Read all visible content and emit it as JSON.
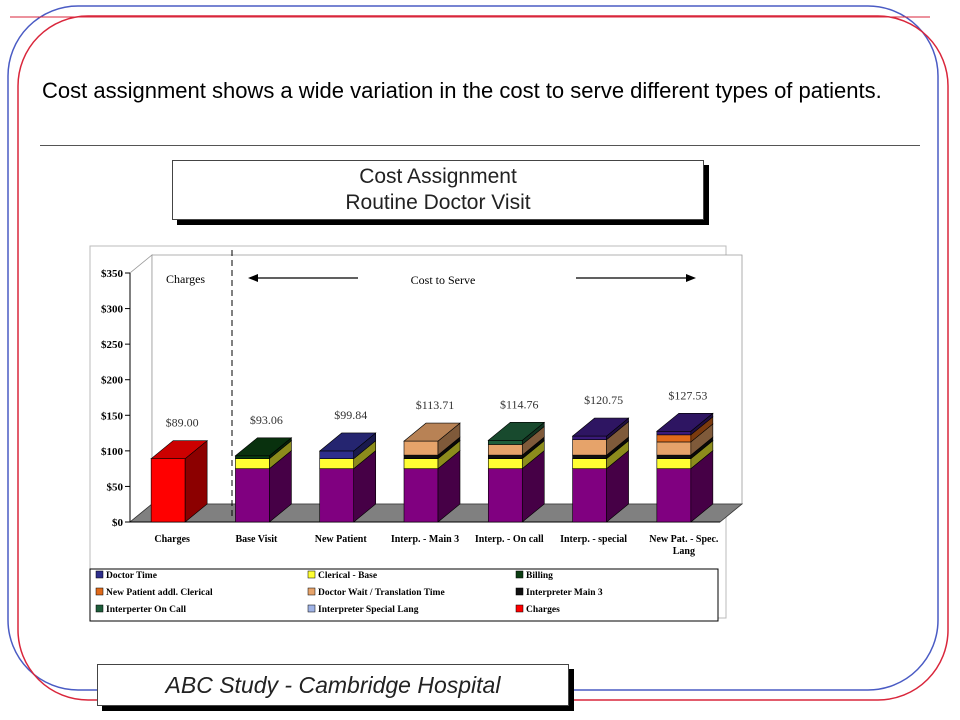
{
  "slide": {
    "heading": "Cost assignment shows a wide variation in the cost to serve different types of patients.",
    "footer": "ABC Study - Cambridge Hospital"
  },
  "colors": {
    "frame_blue": "#4a5bc4",
    "frame_red": "#d9263b",
    "doctor_time": "#2e2e8c",
    "clerical_base": "#ffff33",
    "billing": "#0b3d12",
    "new_patient_addl_clerical": "#e06a1a",
    "doctor_wait_translation": "#e6a36a",
    "interpreter_main_3": "#111111",
    "interpreter_on_call": "#1e5d3a",
    "interpreter_special_lang": "#3a1a7a",
    "charges": "#ff0000",
    "base_block": "#800080"
  },
  "chart_data": {
    "type": "bar",
    "stacked": true,
    "three_d": true,
    "title": "Cost Assignment\nRoutine Doctor Visit",
    "title_lines": [
      "Cost Assignment",
      "Routine Doctor Visit"
    ],
    "categories": [
      "Charges",
      "Base Visit",
      "New Patient",
      "Interp. - Main 3",
      "Interp. - On call",
      "Interp. - special",
      "New Pat. - Spec. Lang"
    ],
    "totals": [
      89.0,
      93.06,
      99.84,
      113.71,
      114.76,
      120.75,
      127.53
    ],
    "total_labels": [
      "$89.00",
      "$93.06",
      "$99.84",
      "$113.71",
      "$114.76",
      "$120.75",
      "$127.53"
    ],
    "ylim": [
      0,
      350
    ],
    "yticks": [
      0,
      50,
      100,
      150,
      200,
      250,
      300,
      350
    ],
    "ytick_labels": [
      "$0",
      "$50",
      "$100",
      "$150",
      "$200",
      "$250",
      "$300",
      "$350"
    ],
    "annotations": {
      "charges_label": "Charges",
      "cost_to_serve_label": "Cost to Serve"
    },
    "legend": [
      "Doctor Time",
      "Clerical - Base",
      "Billing",
      "New Patient addl. Clerical",
      "Doctor Wait / Translation Time",
      "Interpreter Main 3",
      "Interperter On Call",
      "Interpreter Special Lang",
      "Charges"
    ],
    "legend_colors": [
      "#2e2e8c",
      "#ffff33",
      "#0b3d12",
      "#e06a1a",
      "#e6a36a",
      "#111111",
      "#1e5d3a",
      "#9fb3e6",
      "#ff0000"
    ],
    "series_values": [
      {
        "name": "Charges",
        "values": [
          89.0,
          0,
          0,
          0,
          0,
          0,
          0
        ],
        "color": "#ff0000"
      },
      {
        "name": "",
        "values": [
          0,
          75,
          75,
          75,
          75,
          75,
          75
        ],
        "color": "#800080"
      },
      {
        "name": "Clerical - Base",
        "values": [
          0,
          14,
          14,
          14,
          14,
          14,
          14
        ],
        "color": "#ffff33"
      },
      {
        "name": "Billing",
        "values": [
          0,
          4.06,
          0,
          0,
          0,
          0,
          0
        ],
        "color": "#0b3d12"
      },
      {
        "name": "Interpreter Main 3",
        "values": [
          0,
          0,
          0,
          5,
          5,
          5,
          5
        ],
        "color": "#111111"
      },
      {
        "name": "Doctor Wait / Translation Time",
        "values": [
          0,
          0,
          0,
          19.71,
          15,
          21.75,
          18.53
        ],
        "color": "#e6a36a"
      },
      {
        "name": "Doctor Time",
        "values": [
          0,
          0,
          10.84,
          0,
          0,
          0,
          0
        ],
        "color": "#2e2e8c"
      },
      {
        "name": "New Patient addl. Clerical",
        "values": [
          0,
          0,
          0,
          0,
          0,
          0,
          10
        ],
        "color": "#e06a1a"
      },
      {
        "name": "Interperter On Call",
        "values": [
          0,
          0,
          0,
          0,
          5.76,
          0,
          0
        ],
        "color": "#1e5d3a"
      },
      {
        "name": "Interpreter Special Lang",
        "values": [
          0,
          0,
          0,
          0,
          0,
          5,
          5
        ],
        "color": "#3a1a7a"
      }
    ]
  }
}
